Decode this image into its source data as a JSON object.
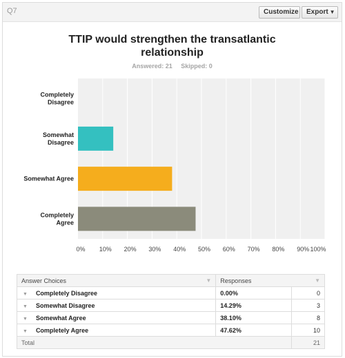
{
  "question_number": "Q7",
  "toolbar": {
    "customize_label": "Customize",
    "export_label": "Export"
  },
  "header": {
    "title_line1": "TTIP would strengthen the transatlantic",
    "title_line2": "relationship",
    "answered": "Answered: 21",
    "skipped": "Skipped: 0"
  },
  "chart_data": {
    "type": "bar",
    "orientation": "horizontal",
    "categories": [
      [
        "Completely",
        "Disagree"
      ],
      [
        "Somewhat",
        "Disagree"
      ],
      [
        "Somewhat Agree"
      ],
      [
        "Completely",
        "Agree"
      ]
    ],
    "values": [
      0.0,
      14.29,
      38.1,
      47.62
    ],
    "colors": [
      "#3fbfbf",
      "#34c0c0",
      "#f5ad1d",
      "#8b8b7b"
    ],
    "xlim": [
      0,
      100
    ],
    "x_ticks": [
      "0%",
      "10%",
      "20%",
      "30%",
      "40%",
      "50%",
      "60%",
      "70%",
      "80%",
      "90%",
      "100%"
    ],
    "grid": true,
    "background": "#f0f0f0"
  },
  "table": {
    "headers": [
      "Answer Choices",
      "Responses",
      ""
    ],
    "rows": [
      {
        "choice": "Completely Disagree",
        "pct": "0.00%",
        "count": "0"
      },
      {
        "choice": "Somewhat Disagree",
        "pct": "14.29%",
        "count": "3"
      },
      {
        "choice": "Somewhat Agree",
        "pct": "38.10%",
        "count": "8"
      },
      {
        "choice": "Completely Agree",
        "pct": "47.62%",
        "count": "10"
      }
    ],
    "total_label": "Total",
    "total_value": "21"
  }
}
